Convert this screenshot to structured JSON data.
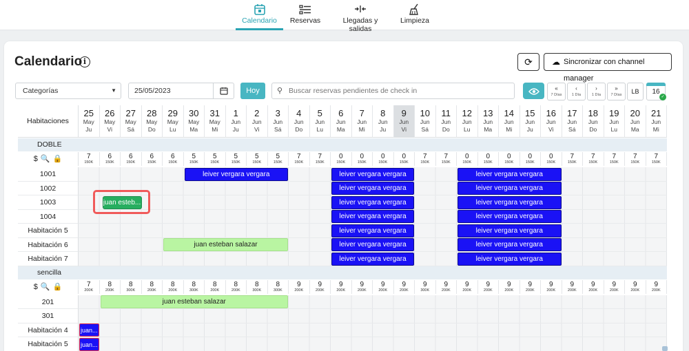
{
  "nav": [
    {
      "label": "Calendario",
      "icon": "calendar-icon",
      "active": true
    },
    {
      "label": "Reservas",
      "icon": "list-icon",
      "active": false
    },
    {
      "label": "Llegadas y salidas",
      "icon": "arrows-icon",
      "active": false
    },
    {
      "label": "Limpieza",
      "icon": "broom-icon",
      "active": false
    }
  ],
  "header": {
    "title": "Calendario",
    "info": "i",
    "refresh_icon": "⟳",
    "sync_label": "Sincronizar con channel manager"
  },
  "toolbar": {
    "category_select": "Categorías",
    "date_value": "25/05/2023",
    "today_label": "Hoy",
    "search_placeholder": "Buscar reservas pendientes de check in",
    "nav_buttons": [
      {
        "arrow": "«",
        "sub": "7 Días"
      },
      {
        "arrow": "‹",
        "sub": "1 Día"
      },
      {
        "arrow": "›",
        "sub": "1 Día"
      },
      {
        "arrow": "»",
        "sub": "7 Días"
      }
    ],
    "lb_label": "LB",
    "count": "16"
  },
  "grid": {
    "rooms_header": "Habitaciones",
    "days": [
      {
        "d": "25",
        "m": "May",
        "w": "Ju"
      },
      {
        "d": "26",
        "m": "May",
        "w": "Vi"
      },
      {
        "d": "27",
        "m": "May",
        "w": "Sá"
      },
      {
        "d": "28",
        "m": "May",
        "w": "Do"
      },
      {
        "d": "29",
        "m": "May",
        "w": "Lu"
      },
      {
        "d": "30",
        "m": "May",
        "w": "Ma"
      },
      {
        "d": "31",
        "m": "May",
        "w": "Mi"
      },
      {
        "d": "1",
        "m": "Jun",
        "w": "Ju"
      },
      {
        "d": "2",
        "m": "Jun",
        "w": "Vi"
      },
      {
        "d": "3",
        "m": "Jun",
        "w": "Sá"
      },
      {
        "d": "4",
        "m": "Jun",
        "w": "Do"
      },
      {
        "d": "5",
        "m": "Jun",
        "w": "Lu"
      },
      {
        "d": "6",
        "m": "Jun",
        "w": "Ma"
      },
      {
        "d": "7",
        "m": "Jun",
        "w": "Mi"
      },
      {
        "d": "8",
        "m": "Jun",
        "w": "Ju"
      },
      {
        "d": "9",
        "m": "Jun",
        "w": "Vi",
        "today": true
      },
      {
        "d": "10",
        "m": "Jun",
        "w": "Sá"
      },
      {
        "d": "11",
        "m": "Jun",
        "w": "Do"
      },
      {
        "d": "12",
        "m": "Jun",
        "w": "Lu"
      },
      {
        "d": "13",
        "m": "Jun",
        "w": "Ma"
      },
      {
        "d": "14",
        "m": "Jun",
        "w": "Mi"
      },
      {
        "d": "15",
        "m": "Jun",
        "w": "Ju"
      },
      {
        "d": "16",
        "m": "Jun",
        "w": "Vi"
      },
      {
        "d": "17",
        "m": "Jun",
        "w": "Sá"
      },
      {
        "d": "18",
        "m": "Jun",
        "w": "Do"
      },
      {
        "d": "19",
        "m": "Jun",
        "w": "Lu"
      },
      {
        "d": "20",
        "m": "Jun",
        "w": "Ma"
      },
      {
        "d": "21",
        "m": "Jun",
        "w": "Mi"
      }
    ],
    "groups": [
      {
        "name": "DOBLE",
        "price_label_icons": [
          "$",
          "🔍",
          "🔒"
        ],
        "counts": [
          "7",
          "6",
          "6",
          "6",
          "6",
          "5",
          "5",
          "5",
          "5",
          "5",
          "7",
          "7",
          "0",
          "0",
          "0",
          "0",
          "7",
          "7",
          "0",
          "0",
          "0",
          "0",
          "0",
          "7",
          "7",
          "7",
          "7",
          "7"
        ],
        "prices": [
          "150K",
          "150K",
          "150K",
          "150K",
          "150K",
          "150K",
          "150K",
          "150K",
          "150K",
          "150K",
          "150K",
          "150K",
          "150K",
          "150K",
          "150K",
          "150K",
          "150K",
          "150K",
          "150K",
          "150K",
          "150K",
          "150K",
          "150K",
          "150K",
          "150K",
          "150K",
          "150K",
          "150K"
        ],
        "rooms": [
          {
            "name": "1001",
            "reservations": [
              {
                "guest": "leiver vergara vergara",
                "start": 5,
                "end": 10,
                "color": "blue"
              },
              {
                "guest": "leiver vergara vergara",
                "start": 12,
                "end": 16,
                "color": "blue"
              },
              {
                "guest": "leiver vergara vergara",
                "start": 18,
                "end": 23,
                "color": "blue"
              }
            ]
          },
          {
            "name": "1002",
            "reservations": [
              {
                "guest": "leiver vergara vergara",
                "start": 12,
                "end": 16,
                "color": "blue"
              },
              {
                "guest": "leiver vergara vergara",
                "start": 18,
                "end": 23,
                "color": "blue"
              }
            ]
          },
          {
            "name": "1003",
            "reservations": [
              {
                "guest": "juan esteb...",
                "start": 1,
                "end": 3,
                "color": "dkgreen"
              },
              {
                "guest": "leiver vergara vergara",
                "start": 12,
                "end": 16,
                "color": "blue"
              },
              {
                "guest": "leiver vergara vergara",
                "start": 18,
                "end": 23,
                "color": "blue"
              }
            ]
          },
          {
            "name": "1004",
            "reservations": [
              {
                "guest": "leiver vergara vergara",
                "start": 12,
                "end": 16,
                "color": "blue"
              },
              {
                "guest": "leiver vergara vergara",
                "start": 18,
                "end": 23,
                "color": "blue"
              }
            ]
          },
          {
            "name": "Habitación 5",
            "reservations": [
              {
                "guest": "leiver vergara vergara",
                "start": 12,
                "end": 16,
                "color": "blue"
              },
              {
                "guest": "leiver vergara vergara",
                "start": 18,
                "end": 23,
                "color": "blue"
              }
            ]
          },
          {
            "name": "Habitación 6",
            "reservations": [
              {
                "guest": "juan esteban salazar",
                "start": 4,
                "end": 10,
                "color": "green"
              },
              {
                "guest": "leiver vergara vergara",
                "start": 12,
                "end": 16,
                "color": "blue"
              },
              {
                "guest": "leiver vergara vergara",
                "start": 18,
                "end": 23,
                "color": "blue"
              }
            ]
          },
          {
            "name": "Habitación 7",
            "reservations": [
              {
                "guest": "leiver vergara vergara",
                "start": 12,
                "end": 16,
                "color": "blue"
              },
              {
                "guest": "leiver vergara vergara",
                "start": 18,
                "end": 23,
                "color": "blue"
              }
            ]
          }
        ]
      },
      {
        "name": "sencilla",
        "price_label_icons": [
          "$",
          "🔍",
          "🔒"
        ],
        "counts": [
          "7",
          "8",
          "8",
          "8",
          "8",
          "8",
          "8",
          "8",
          "8",
          "8",
          "9",
          "9",
          "9",
          "9",
          "9",
          "9",
          "9",
          "9",
          "9",
          "9",
          "9",
          "9",
          "9",
          "9",
          "9",
          "9",
          "9",
          "9"
        ],
        "prices": [
          "200K",
          "200K",
          "300K",
          "200K",
          "200K",
          "300K",
          "200K",
          "200K",
          "300K",
          "300K",
          "200K",
          "200K",
          "200K",
          "200K",
          "200K",
          "200K",
          "300K",
          "200K",
          "200K",
          "200K",
          "200K",
          "200K",
          "200K",
          "200K",
          "200K",
          "200K",
          "200K",
          "200K"
        ],
        "rooms": [
          {
            "name": "201",
            "reservations": [
              {
                "guest": "juan esteban salazar",
                "start": 1,
                "end": 10,
                "color": "green"
              }
            ]
          },
          {
            "name": "301",
            "reservations": []
          },
          {
            "name": "Habitación 4",
            "reservations": [
              {
                "guest": "juan...",
                "start": 0,
                "end": 1,
                "color": "blue-small"
              }
            ]
          },
          {
            "name": "Habitación 5",
            "reservations": [
              {
                "guest": "juan...",
                "start": 0,
                "end": 1,
                "color": "blue-small"
              }
            ]
          }
        ]
      }
    ]
  }
}
